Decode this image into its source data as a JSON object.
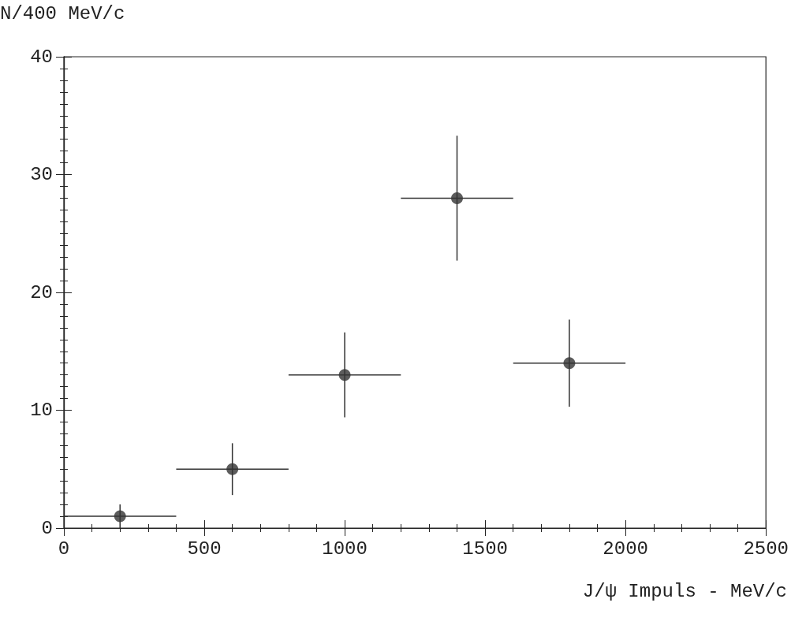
{
  "chart_data": {
    "type": "scatter",
    "xlabel": "J/ψ Impuls - MeV/c",
    "ylabel": "N/400 MeV/c",
    "x": [
      200,
      600,
      1000,
      1400,
      1800
    ],
    "values": [
      1,
      5,
      13,
      28,
      14
    ],
    "errors": [
      1,
      2.2,
      3.6,
      5.3,
      3.7
    ],
    "xerrors": [
      200,
      200,
      200,
      200,
      200
    ],
    "color": "#333333",
    "marker": "circle",
    "grid": false,
    "xlim": [
      0,
      2500
    ],
    "xticks": [
      0,
      500,
      1000,
      1500,
      2000,
      2500
    ],
    "ylim": [
      0,
      40
    ],
    "yticks": [
      0,
      10,
      20,
      30,
      40
    ]
  }
}
